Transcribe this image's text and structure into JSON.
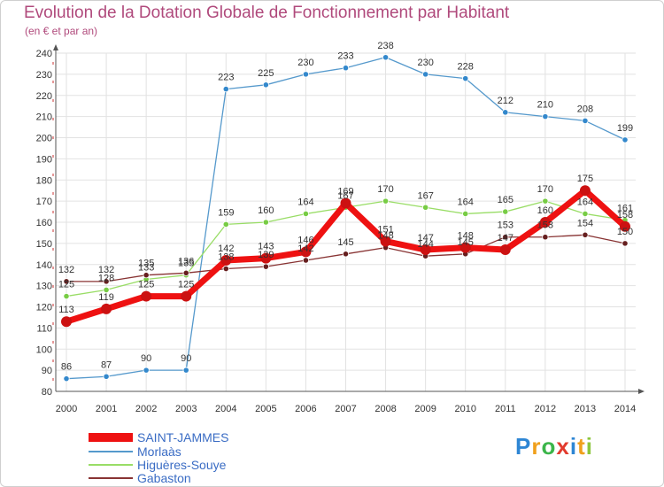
{
  "title": "Evolution de la Dotation Globale de Fonctionnement par Habitant",
  "subtitle": "(en € et par an)",
  "logo_text": "Proxiti",
  "chart_data": {
    "type": "line",
    "title": "Evolution de la Dotation Globale de Fonctionnement par Habitant",
    "subtitle": "(en € et par an)",
    "xlabel": "",
    "ylabel": "",
    "ylim": [
      80,
      240
    ],
    "y_ticks": [
      80,
      90,
      100,
      110,
      120,
      130,
      140,
      150,
      160,
      170,
      180,
      190,
      200,
      210,
      220,
      230,
      240
    ],
    "x": [
      "2000",
      "2001",
      "2002",
      "2003",
      "2004",
      "2005",
      "2006",
      "2007",
      "2008",
      "2009",
      "2010",
      "2011",
      "2012",
      "2013",
      "2014"
    ],
    "grid": true,
    "legend_position": "bottom-left",
    "series": [
      {
        "name": "SAINT-JAMMES",
        "color": "#ee1111",
        "values": [
          113,
          119,
          125,
          125,
          142,
          143,
          146,
          169,
          151,
          147,
          148,
          147,
          160,
          175,
          158
        ]
      },
      {
        "name": "Morlaàs",
        "color": "#5599cc",
        "values": [
          86,
          87,
          90,
          90,
          223,
          225,
          230,
          233,
          238,
          230,
          228,
          212,
          210,
          208,
          199
        ]
      },
      {
        "name": "Higuères-Souye",
        "color": "#99dd66",
        "values": [
          125,
          128,
          133,
          135,
          159,
          160,
          164,
          167,
          170,
          167,
          164,
          165,
          170,
          164,
          161
        ]
      },
      {
        "name": "Gabaston",
        "color": "#883333",
        "values": [
          132,
          132,
          135,
          136,
          138,
          139,
          142,
          145,
          148,
          144,
          145,
          153,
          153,
          154,
          150
        ]
      }
    ]
  }
}
